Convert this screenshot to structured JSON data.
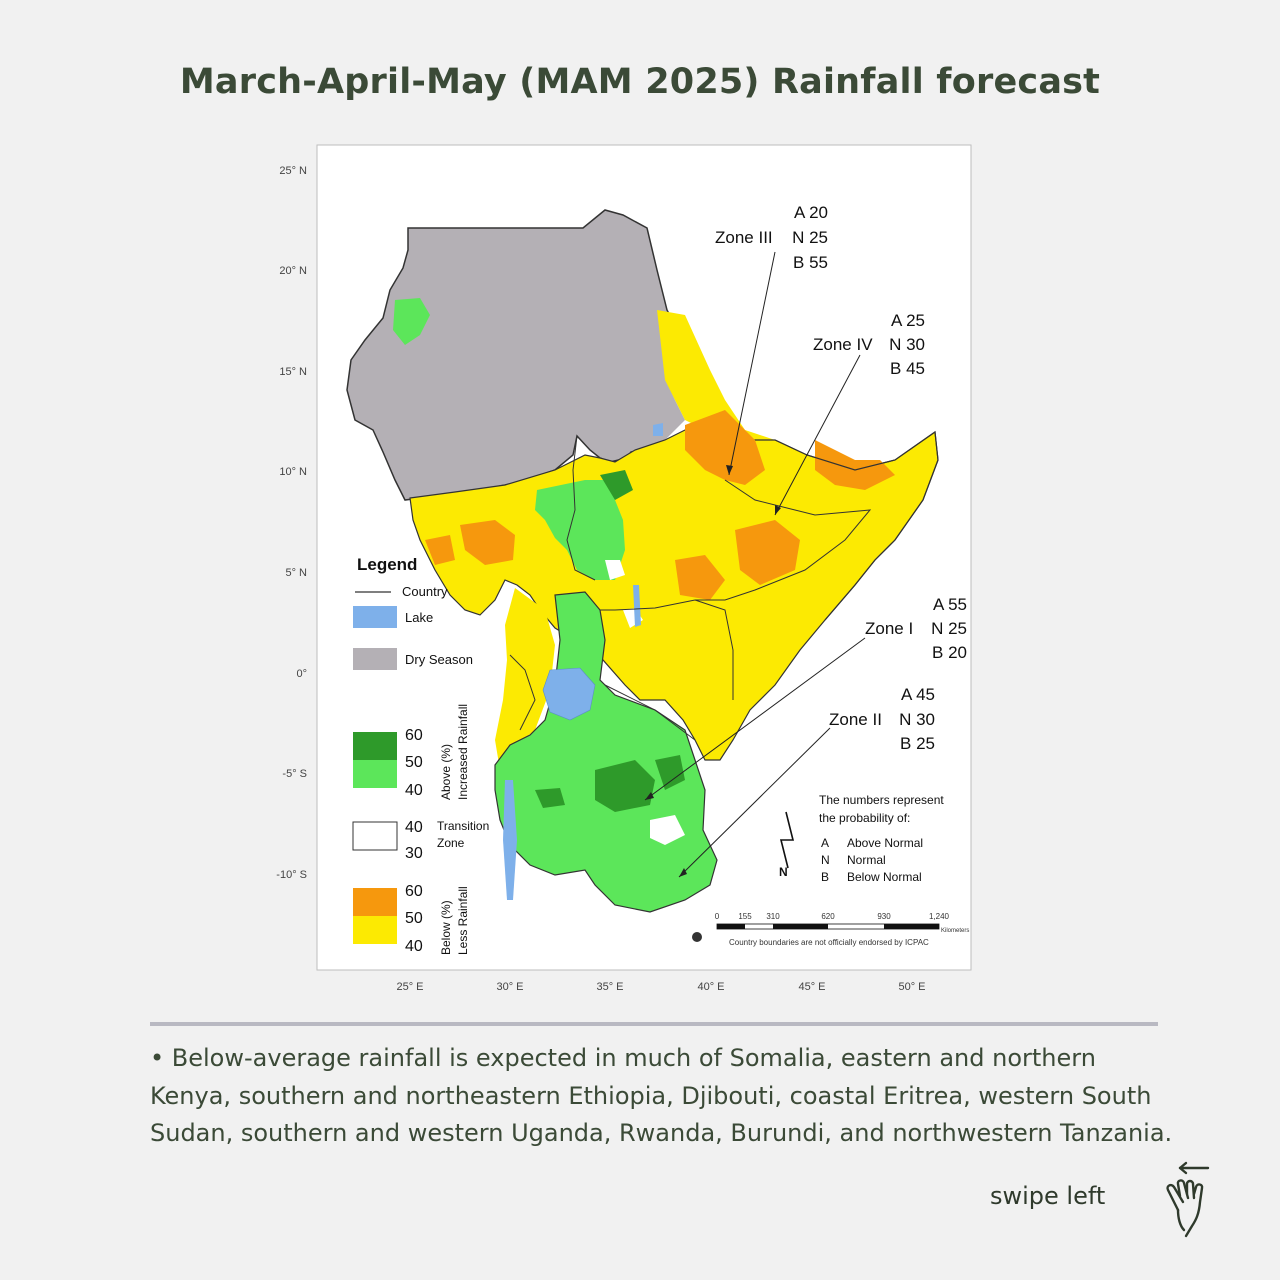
{
  "title": "March-April-May (MAM 2025) Rainfall forecast",
  "map": {
    "latitude_ticks": [
      "25° N",
      "20° N",
      "15° N",
      "10° N",
      "5° N",
      "0°",
      "-5° S",
      "-10° S"
    ],
    "longitude_ticks": [
      "25° E",
      "30° E",
      "35° E",
      "40° E",
      "45° E",
      "50° E"
    ],
    "zones": [
      {
        "name": "Zone III",
        "A": "A 20",
        "N": "N 25",
        "B": "B 55"
      },
      {
        "name": "Zone IV",
        "A": "A 25",
        "N": "N 30",
        "B": "B 45"
      },
      {
        "name": "Zone I",
        "A": "A 55",
        "N": "N 25",
        "B": "B 20"
      },
      {
        "name": "Zone II",
        "A": "A 45",
        "N": "N 30",
        "B": "B 25"
      }
    ],
    "legend": {
      "title": "Legend",
      "country": "Country",
      "lake": "Lake",
      "dry_season": "Dry Season",
      "above_label_1": "Above (%)",
      "above_label_2": "Increased Rainfall",
      "above_values": [
        "60",
        "50",
        "40"
      ],
      "transition_values": [
        "40",
        "30"
      ],
      "transition_label_1": "Transition",
      "transition_label_2": "Zone",
      "below_label_1": "Below (%)",
      "below_label_2": "Less Rainfall",
      "below_values": [
        "60",
        "50",
        "40"
      ]
    },
    "probability_note": {
      "line1": "The numbers represent",
      "line2": "the probability of:",
      "a": "A",
      "a_label": "Above Normal",
      "n": "N",
      "n_label": "Normal",
      "b": "B",
      "b_label": "Below Normal"
    },
    "north_arrow_label": "N",
    "scale_ticks": [
      "0",
      "155",
      "310",
      "620",
      "930",
      "1,240"
    ],
    "scale_unit": "Kilometers",
    "disclaimer": "Country boundaries are not officially endorsed by ICPAC",
    "colors": {
      "dry_season": "#b4b0b5",
      "lake": "#7eb0ea",
      "above_60": "#2e9a2a",
      "above_50": "#5ce65a",
      "below_60": "#f6980d",
      "below_50": "#fcea02",
      "transition": "#ffffff"
    }
  },
  "description": "• Below-average rainfall is expected in much of Somalia, eastern and northern Kenya, southern and northeastern Ethiopia, Djibouti, coastal Eritrea, western South Sudan, southern and western Uganda, Rwanda, Burundi, and northwestern Tanzania.",
  "swipe_hint": "swipe left"
}
